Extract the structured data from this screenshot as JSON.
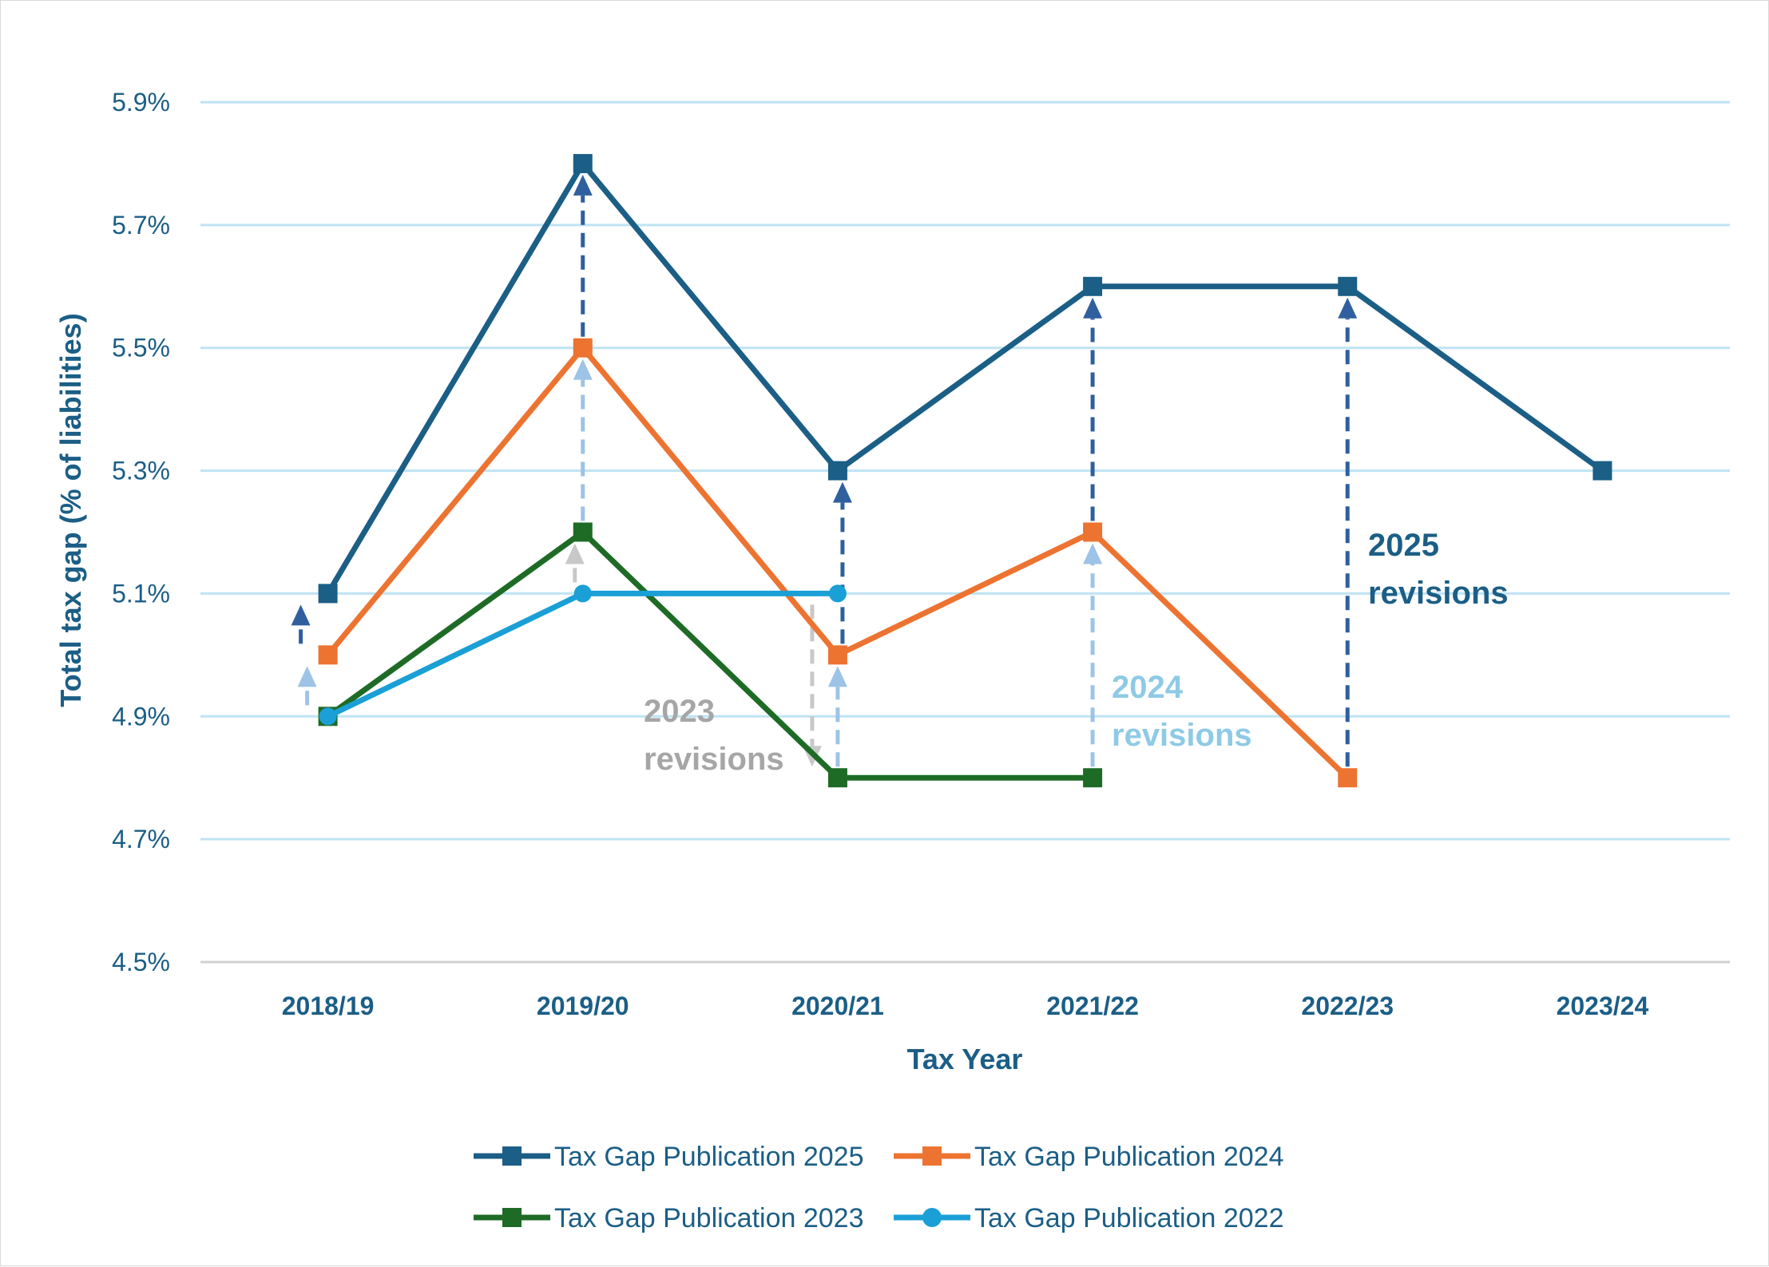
{
  "chart_data": {
    "type": "line",
    "title": "",
    "xlabel": "Tax Year",
    "ylabel": "Total tax gap (% of liabilities)",
    "categories": [
      "2018/19",
      "2019/20",
      "2020/21",
      "2021/22",
      "2022/23",
      "2023/24"
    ],
    "ylim": [
      4.5,
      5.9
    ],
    "yticks": [
      "4.5%",
      "4.7%",
      "4.9%",
      "5.1%",
      "5.3%",
      "5.5%",
      "5.7%",
      "5.9%"
    ],
    "grid": true,
    "legend_position": "bottom",
    "series": [
      {
        "name": "Tax Gap Publication 2025",
        "color": "#1b5e86",
        "marker": "square",
        "values": [
          5.1,
          5.8,
          5.3,
          5.6,
          5.6,
          5.3
        ]
      },
      {
        "name": "Tax Gap Publication 2024",
        "color": "#ed7331",
        "marker": "square",
        "values": [
          5.0,
          5.5,
          5.0,
          5.2,
          4.8,
          null
        ]
      },
      {
        "name": "Tax Gap Publication 2023",
        "color": "#1e6b26",
        "marker": "square",
        "values": [
          4.9,
          5.2,
          4.8,
          4.8,
          null,
          null
        ]
      },
      {
        "name": "Tax Gap Publication 2022",
        "color": "#1a9fd6",
        "marker": "circle",
        "values": [
          4.9,
          5.1,
          5.1,
          null,
          null,
          null
        ]
      }
    ],
    "annotations": [
      {
        "line1": "2025",
        "line2": "revisions",
        "color": "#1b5e86"
      },
      {
        "line1": "2024",
        "line2": "revisions",
        "color": "#8ecae6"
      },
      {
        "line1": "2023",
        "line2": "revisions",
        "color": "#a6a6a6"
      }
    ],
    "revision_arrows": [
      {
        "category": "2018/19",
        "from": 4.9,
        "to": 5.0,
        "color": "#9dc3e6"
      },
      {
        "category": "2018/19",
        "from": 5.0,
        "to": 5.1,
        "color": "#2f5f9e"
      },
      {
        "category": "2019/20",
        "from": 5.1,
        "to": 5.2,
        "color": "#c8c8c8"
      },
      {
        "category": "2019/20",
        "from": 5.2,
        "to": 5.5,
        "color": "#9dc3e6"
      },
      {
        "category": "2019/20",
        "from": 5.5,
        "to": 5.8,
        "color": "#2f5f9e"
      },
      {
        "category": "2020/21",
        "from": 5.1,
        "to": 4.8,
        "color": "#c8c8c8"
      },
      {
        "category": "2020/21",
        "from": 4.8,
        "to": 5.0,
        "color": "#9dc3e6"
      },
      {
        "category": "2020/21",
        "from": 5.0,
        "to": 5.3,
        "color": "#2f5f9e"
      },
      {
        "category": "2021/22",
        "from": 4.8,
        "to": 5.2,
        "color": "#9dc3e6"
      },
      {
        "category": "2021/22",
        "from": 5.2,
        "to": 5.6,
        "color": "#2f5f9e"
      },
      {
        "category": "2022/23",
        "from": 4.8,
        "to": 5.6,
        "color": "#2f5f9e"
      }
    ]
  }
}
